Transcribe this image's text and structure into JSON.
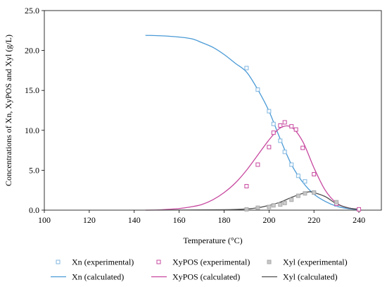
{
  "chart_data": {
    "type": "scatter",
    "xlabel": "Temperature (°C)",
    "ylabel": "Concentrations of Xn, XyPOS and Xyl (g/L)",
    "xlim": [
      100,
      250
    ],
    "ylim": [
      0,
      25
    ],
    "xticks": [
      100,
      120,
      140,
      160,
      180,
      200,
      220,
      240
    ],
    "yticks": [
      0.0,
      5.0,
      10.0,
      15.0,
      20.0,
      25.0
    ],
    "ytick_labels": [
      "0.0",
      "5.0",
      "10.0",
      "15.0",
      "20.0",
      "25.0"
    ],
    "grid": false,
    "legend_position": "bottom",
    "series": [
      {
        "name": "Xn (experimental)",
        "kind": "markers",
        "color": "#7fb6e0",
        "x": [
          190,
          195,
          200,
          202,
          205,
          207,
          210,
          213,
          216,
          220,
          230
        ],
        "y": [
          17.8,
          15.1,
          12.4,
          10.8,
          8.7,
          7.3,
          5.7,
          4.3,
          3.6,
          2.2,
          0.7
        ]
      },
      {
        "name": "XyPOS (experimental)",
        "kind": "markers",
        "color": "#c7489f",
        "x": [
          190,
          195,
          200,
          202,
          205,
          207,
          210,
          212,
          215,
          220,
          230,
          240
        ],
        "y": [
          3.0,
          5.7,
          7.9,
          9.7,
          10.6,
          11.0,
          10.5,
          10.1,
          7.8,
          4.5,
          0.8,
          0.1
        ]
      },
      {
        "name": "Xyl (experimental)",
        "kind": "markers",
        "color": "#a8a8a8",
        "x": [
          190,
          195,
          200,
          202,
          205,
          207,
          210,
          213,
          216,
          220,
          230
        ],
        "y": [
          0.1,
          0.3,
          0.4,
          0.6,
          0.7,
          0.9,
          1.3,
          1.8,
          2.1,
          2.2,
          1.0
        ]
      },
      {
        "name": "Xn (calculated)",
        "kind": "line",
        "color": "#4a9ad6",
        "x": [
          145,
          155,
          165,
          170,
          175,
          180,
          185,
          190,
          195,
          200,
          205,
          210,
          215,
          220,
          225,
          230,
          235,
          240
        ],
        "y": [
          21.9,
          21.8,
          21.5,
          21.0,
          20.4,
          19.5,
          18.4,
          17.3,
          15.1,
          12.4,
          8.9,
          5.7,
          3.5,
          2.0,
          1.1,
          0.5,
          0.2,
          0.05
        ]
      },
      {
        "name": "XyPOS (calculated)",
        "kind": "line",
        "color": "#c7489f",
        "x": [
          145,
          150,
          155,
          160,
          165,
          170,
          175,
          180,
          185,
          190,
          195,
          200,
          205,
          210,
          215,
          220,
          225,
          230,
          235,
          240
        ],
        "y": [
          0.0,
          0.02,
          0.1,
          0.2,
          0.4,
          0.7,
          1.3,
          2.2,
          3.4,
          5.0,
          6.9,
          8.8,
          10.3,
          10.4,
          8.6,
          5.3,
          2.5,
          0.9,
          0.3,
          0.1
        ]
      },
      {
        "name": "Xyl (calculated)",
        "kind": "line",
        "color": "#505050",
        "x": [
          145,
          180,
          190,
          195,
          200,
          205,
          210,
          215,
          218,
          220,
          225,
          230,
          235,
          240
        ],
        "y": [
          0.0,
          0.05,
          0.15,
          0.3,
          0.6,
          1.0,
          1.6,
          2.1,
          2.3,
          2.2,
          1.7,
          0.8,
          0.3,
          0.1
        ]
      }
    ]
  }
}
